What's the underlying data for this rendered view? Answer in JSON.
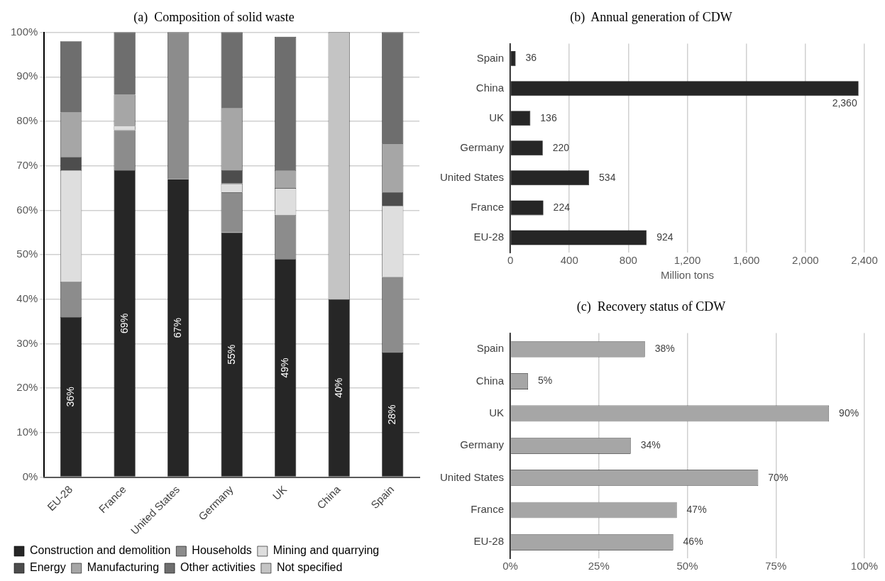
{
  "chart_data": [
    {
      "type": "bar",
      "title": "(a)  Composition of solid waste",
      "categories": [
        "EU-28",
        "France",
        "United States",
        "Germany",
        "UK",
        "China",
        "Spain"
      ],
      "stacked": true,
      "legend": "bottom",
      "grid": "y",
      "ylim": [
        0,
        100
      ],
      "yticks": [
        {
          "value": 0,
          "label": "0%"
        },
        {
          "value": 10,
          "label": "10%"
        },
        {
          "value": 20,
          "label": "20%"
        },
        {
          "value": 30,
          "label": "30%"
        },
        {
          "value": 40,
          "label": "40%"
        },
        {
          "value": 50,
          "label": "50%"
        },
        {
          "value": 60,
          "label": "60%"
        },
        {
          "value": 70,
          "label": "70%"
        },
        {
          "value": 80,
          "label": "80%"
        },
        {
          "value": 90,
          "label": "90%"
        },
        {
          "value": 100,
          "label": "100%"
        }
      ],
      "series": [
        {
          "name": "Construction and demolition",
          "color": "#262626",
          "values": [
            36,
            69,
            67,
            55,
            49,
            40,
            28
          ],
          "value_labels": [
            "36%",
            "69%",
            "67%",
            "55%",
            "49%",
            "40%",
            "28%"
          ]
        },
        {
          "name": "Households",
          "color": "#8c8c8c",
          "values": [
            8,
            9,
            33,
            9,
            10,
            0,
            17
          ]
        },
        {
          "name": "Mining and quarrying",
          "color": "#dedede",
          "values": [
            25,
            1,
            0,
            2,
            6,
            0,
            16
          ]
        },
        {
          "name": "Energy",
          "color": "#4d4d4d",
          "values": [
            3,
            0,
            0,
            3,
            0,
            0,
            3
          ]
        },
        {
          "name": "Manufacturing",
          "color": "#a6a6a6",
          "values": [
            10,
            7,
            0,
            14,
            4,
            0,
            11
          ]
        },
        {
          "name": "Other activities",
          "color": "#6e6e6e",
          "values": [
            16,
            14,
            0,
            17,
            30,
            0,
            25
          ]
        },
        {
          "name": "Not specified",
          "color": "#c4c4c4",
          "values": [
            0,
            0,
            0,
            0,
            0,
            60,
            0
          ]
        }
      ]
    },
    {
      "type": "bar",
      "title": "(b)  Annual generation of CDW",
      "orientation": "horizontal",
      "categories": [
        "Spain",
        "China",
        "UK",
        "Germany",
        "United States",
        "France",
        "EU-28"
      ],
      "xlabel": "Million tons",
      "grid": "x",
      "xlim": [
        0,
        2400
      ],
      "xticks": [
        0,
        400,
        800,
        {
          "value": 1200,
          "label": "1,200"
        },
        {
          "value": 1600,
          "label": "1,600"
        },
        {
          "value": 2000,
          "label": "2,000"
        },
        {
          "value": 2400,
          "label": "2,400"
        }
      ],
      "series": [
        {
          "color": "#262626",
          "values": [
            36,
            2360,
            136,
            220,
            534,
            224,
            924
          ],
          "value_labels": [
            "36",
            "2,360",
            "136",
            "220",
            "534",
            "224",
            "924"
          ]
        }
      ]
    },
    {
      "type": "bar",
      "title": "(c)  Recovery status of CDW",
      "orientation": "horizontal",
      "categories": [
        "Spain",
        "China",
        "UK",
        "Germany",
        "United States",
        "France",
        "EU-28"
      ],
      "grid": "x",
      "xlim": [
        0,
        100
      ],
      "xticks": [
        {
          "value": 0,
          "label": "0%"
        },
        {
          "value": 25,
          "label": "25%"
        },
        {
          "value": 50,
          "label": "50%"
        },
        {
          "value": 75,
          "label": "75%"
        },
        {
          "value": 100,
          "label": "100%"
        }
      ],
      "series": [
        {
          "color": "#a6a6a6",
          "values": [
            38,
            5,
            90,
            34,
            70,
            47,
            46
          ],
          "value_labels": [
            "38%",
            "5%",
            "90%",
            "34%",
            "70%",
            "47%",
            "46%"
          ]
        }
      ]
    }
  ]
}
